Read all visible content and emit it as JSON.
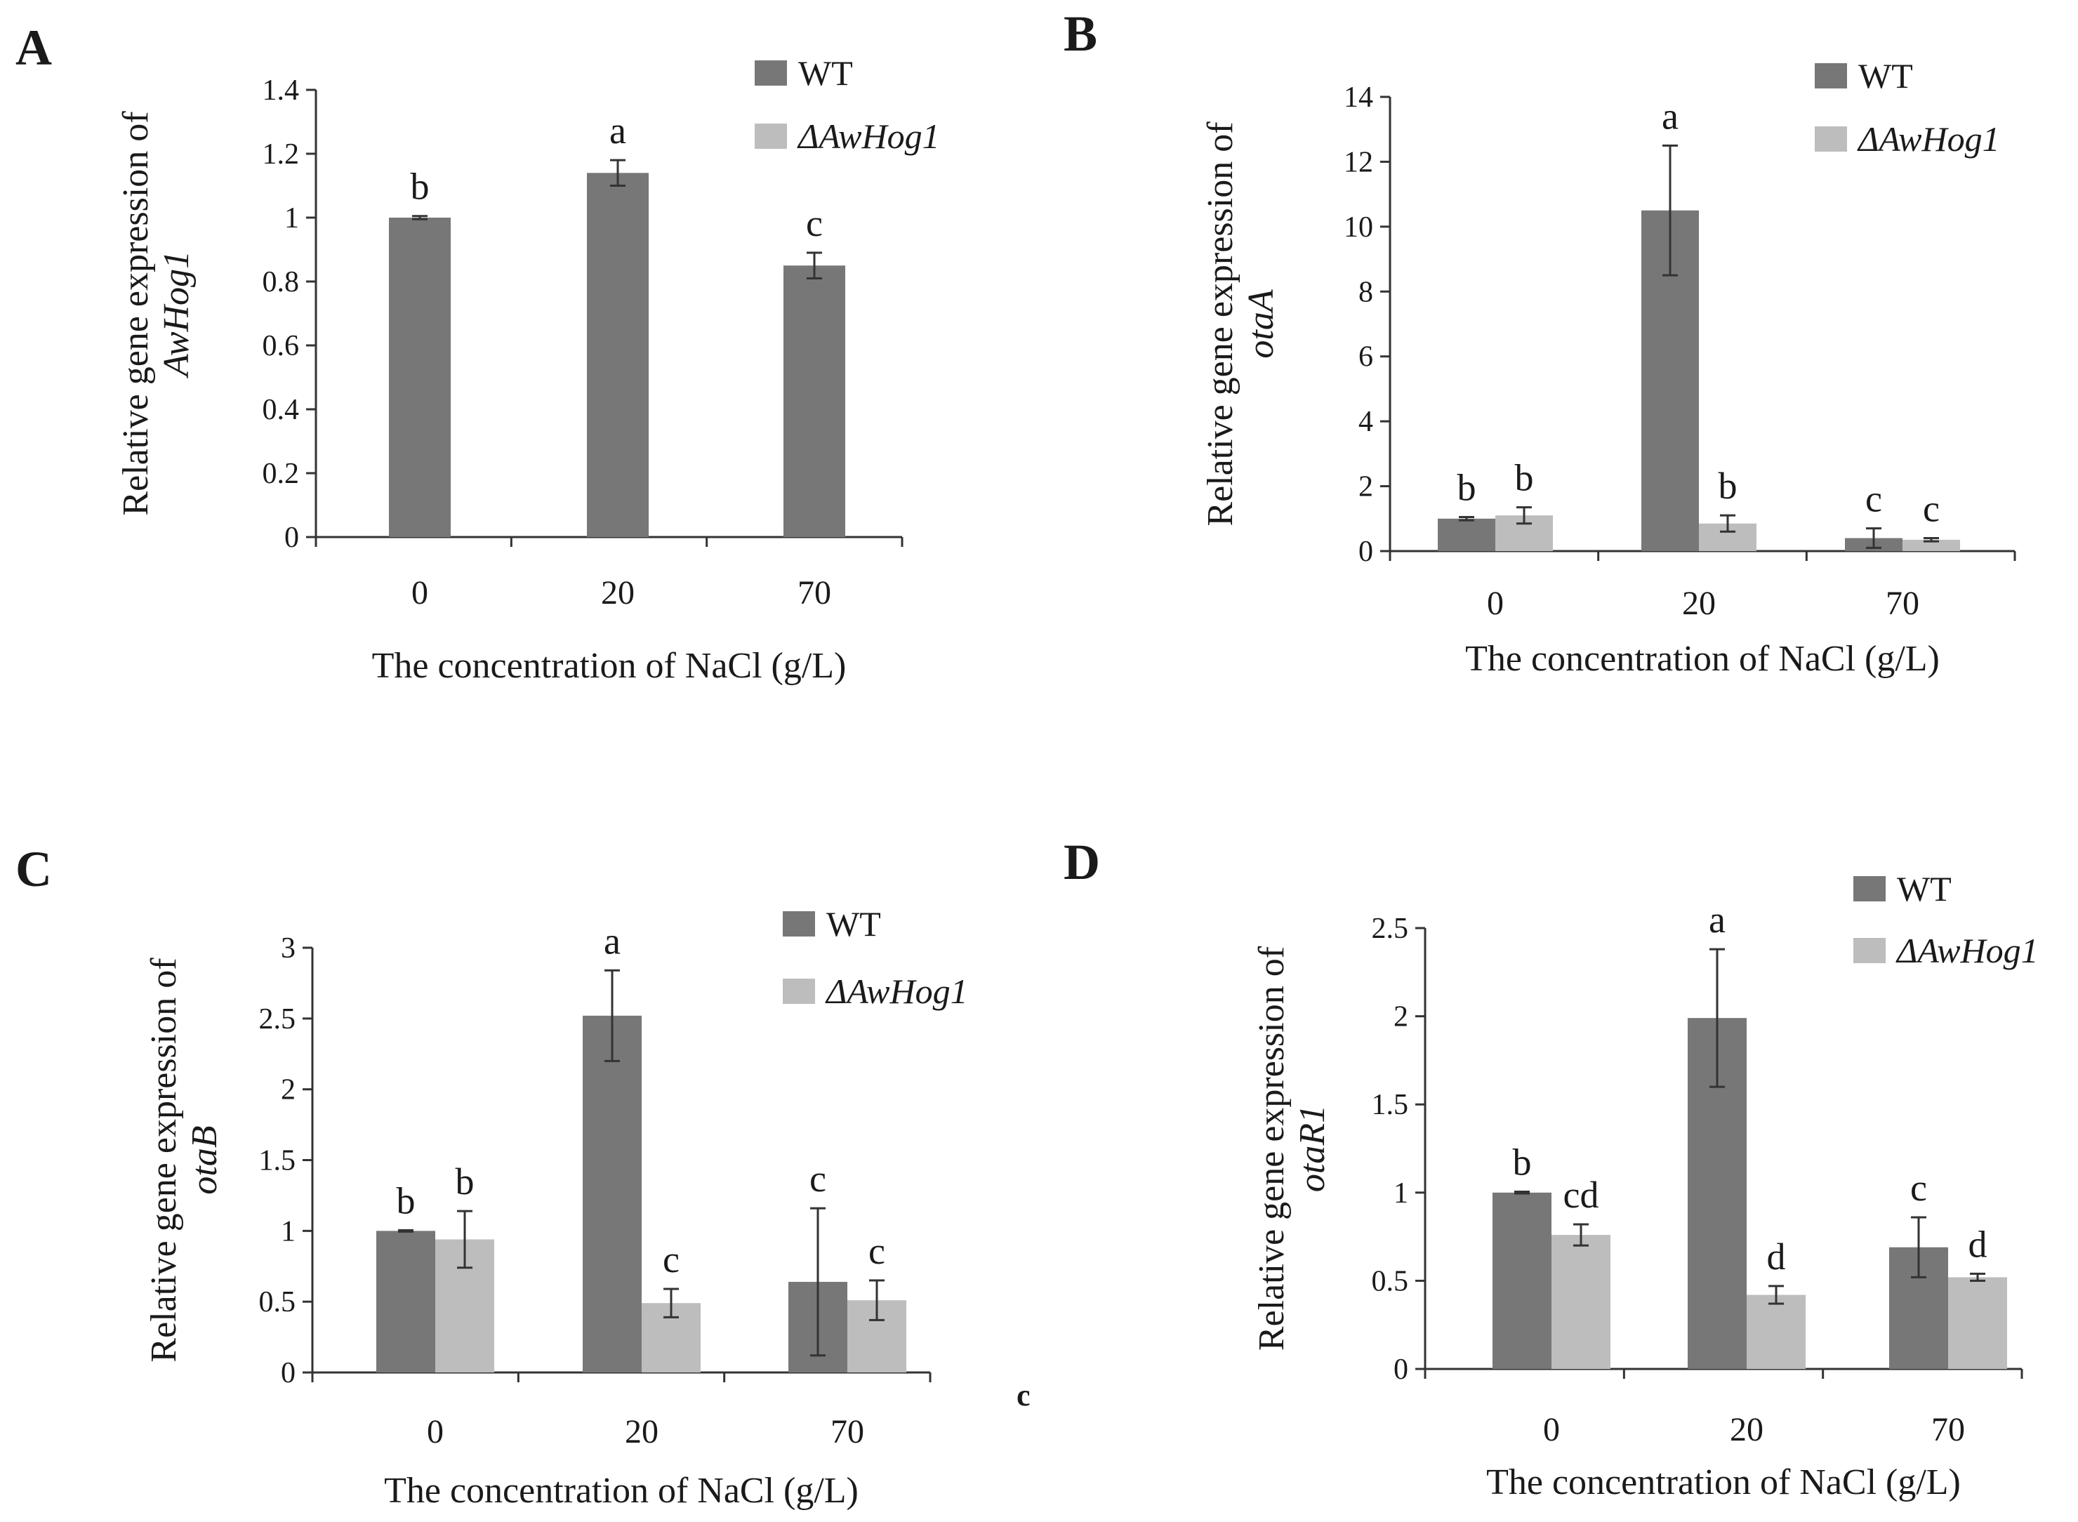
{
  "colors": {
    "wt": "#777777",
    "mutant": "#bdbdbd",
    "axis": "#333333",
    "error": "#333333",
    "text": "#1a1a1a"
  },
  "stray_mark": "c",
  "chart_data": [
    {
      "panel": "A",
      "type": "bar",
      "ylabel_line1": "Relative gene expression of",
      "ylabel_line2": "AwHog1",
      "xlabel": "The concentration of NaCl (g/L)",
      "categories": [
        "0",
        "20",
        "70"
      ],
      "ylim": [
        0,
        1.4
      ],
      "yticks": [
        "0",
        "0.2",
        "0.4",
        "0.6",
        "0.8",
        "1",
        "1.2",
        "1.4"
      ],
      "legend_position": "top-right",
      "legend": [
        "WT",
        "ΔAwHog1"
      ],
      "series": [
        {
          "name": "WT",
          "values": [
            1.0,
            1.14,
            0.85
          ],
          "errors": [
            0.005,
            0.04,
            0.04
          ],
          "labels": [
            "b",
            "a",
            "c"
          ]
        }
      ]
    },
    {
      "panel": "B",
      "type": "bar",
      "ylabel_line1": "Relative gene expression of",
      "ylabel_line2": "otaA",
      "xlabel": "The concentration of NaCl (g/L)",
      "categories": [
        "0",
        "20",
        "70"
      ],
      "ylim": [
        0,
        14
      ],
      "yticks": [
        "0",
        "2",
        "4",
        "6",
        "8",
        "10",
        "12",
        "14"
      ],
      "legend_position": "top-right",
      "legend": [
        "WT",
        "ΔAwHog1"
      ],
      "series": [
        {
          "name": "WT",
          "values": [
            1.0,
            10.5,
            0.4
          ],
          "errors": [
            0.05,
            2.0,
            0.3
          ],
          "labels": [
            "b",
            "a",
            "c"
          ]
        },
        {
          "name": "ΔAwHog1",
          "values": [
            1.1,
            0.85,
            0.35
          ],
          "errors": [
            0.25,
            0.25,
            0.05
          ],
          "labels": [
            "b",
            "b",
            "c"
          ]
        }
      ]
    },
    {
      "panel": "C",
      "type": "bar",
      "ylabel_line1": "Relative gene expression of",
      "ylabel_line2": "otaB",
      "xlabel": "The concentration of NaCl (g/L)",
      "categories": [
        "0",
        "20",
        "70"
      ],
      "ylim": [
        0,
        3
      ],
      "yticks": [
        "0",
        "0.5",
        "1",
        "1.5",
        "2",
        "2.5",
        "3"
      ],
      "legend_position": "top-right",
      "legend": [
        "WT",
        "ΔAwHog1"
      ],
      "series": [
        {
          "name": "WT",
          "values": [
            1.0,
            2.52,
            0.64
          ],
          "errors": [
            0.005,
            0.32,
            0.52
          ],
          "labels": [
            "b",
            "a",
            "c"
          ]
        },
        {
          "name": "ΔAwHog1",
          "values": [
            0.94,
            0.49,
            0.51
          ],
          "errors": [
            0.2,
            0.1,
            0.14
          ],
          "labels": [
            "b",
            "c",
            "c"
          ]
        }
      ]
    },
    {
      "panel": "D",
      "type": "bar",
      "ylabel_line1": "Relative gene expression of",
      "ylabel_line2": "otaR1",
      "xlabel": "The concentration of NaCl (g/L)",
      "categories": [
        "0",
        "20",
        "70"
      ],
      "ylim": [
        0,
        2.5
      ],
      "yticks": [
        "0",
        "0.5",
        "1",
        "1.5",
        "2",
        "2.5"
      ],
      "legend_position": "top-right",
      "legend": [
        "WT",
        "ΔAwHog1"
      ],
      "series": [
        {
          "name": "WT",
          "values": [
            1.0,
            1.99,
            0.69
          ],
          "errors": [
            0.005,
            0.39,
            0.17
          ],
          "labels": [
            "b",
            "a",
            "c"
          ]
        },
        {
          "name": "ΔAwHog1",
          "values": [
            0.76,
            0.42,
            0.52
          ],
          "errors": [
            0.06,
            0.05,
            0.02
          ],
          "labels": [
            "cd",
            "d",
            "d"
          ]
        }
      ]
    }
  ]
}
